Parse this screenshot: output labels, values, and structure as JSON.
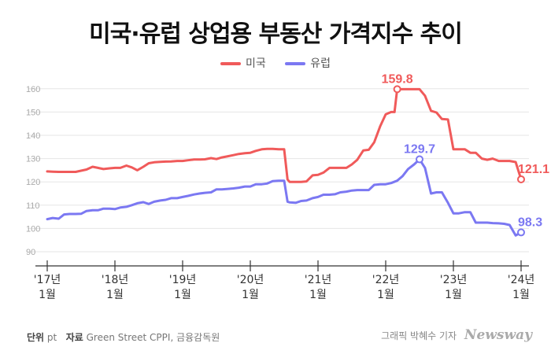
{
  "title": "미국·유럽 상업용 부동산 가격지수 추이",
  "legend": [
    {
      "name": "미국",
      "color": "#f05a5a"
    },
    {
      "name": "유럽",
      "color": "#7b78f2"
    }
  ],
  "footer": {
    "unit_label": "단위",
    "unit_value": "pt",
    "source_label": "자료",
    "source_value": "Green Street CPPI, 금융감독원",
    "credit": "그래픽 박혜수 기자",
    "brand": "Newsway"
  },
  "chart_data": {
    "type": "line",
    "ylim": [
      90,
      165
    ],
    "yticks": [
      90,
      100,
      110,
      120,
      130,
      140,
      150,
      160
    ],
    "xlim": [
      2017.0,
      2024.0
    ],
    "xticks": [
      {
        "x": 2017.0,
        "line1": "'17년",
        "line2": "1월"
      },
      {
        "x": 2018.0,
        "line1": "'18년",
        "line2": "1월"
      },
      {
        "x": 2019.0,
        "line1": "'19년",
        "line2": "1월"
      },
      {
        "x": 2020.0,
        "line1": "'20년",
        "line2": "1월"
      },
      {
        "x": 2021.0,
        "line1": "'21년",
        "line2": "1월"
      },
      {
        "x": 2022.0,
        "line1": "'22년",
        "line2": "1월"
      },
      {
        "x": 2023.0,
        "line1": "'23년",
        "line2": "1월"
      },
      {
        "x": 2024.0,
        "line1": "'24년",
        "line2": "1월"
      }
    ],
    "grid": true,
    "legend_position": "top-center",
    "series": [
      {
        "name": "미국",
        "color": "#f05a5a",
        "points": [
          [
            2017.0,
            124.5
          ],
          [
            2017.08,
            124.4
          ],
          [
            2017.17,
            124.3
          ],
          [
            2017.25,
            124.3
          ],
          [
            2017.33,
            124.3
          ],
          [
            2017.42,
            124.3
          ],
          [
            2017.5,
            124.8
          ],
          [
            2017.58,
            125.3
          ],
          [
            2017.67,
            126.5
          ],
          [
            2017.75,
            126.0
          ],
          [
            2017.83,
            125.5
          ],
          [
            2017.92,
            125.8
          ],
          [
            2018.0,
            126.0
          ],
          [
            2018.08,
            126.0
          ],
          [
            2018.17,
            127.0
          ],
          [
            2018.25,
            126.2
          ],
          [
            2018.33,
            125.0
          ],
          [
            2018.42,
            126.5
          ],
          [
            2018.5,
            128.0
          ],
          [
            2018.58,
            128.4
          ],
          [
            2018.67,
            128.6
          ],
          [
            2018.75,
            128.7
          ],
          [
            2018.83,
            128.8
          ],
          [
            2018.92,
            129.0
          ],
          [
            2019.0,
            129.0
          ],
          [
            2019.08,
            129.3
          ],
          [
            2019.17,
            129.6
          ],
          [
            2019.25,
            129.6
          ],
          [
            2019.33,
            129.7
          ],
          [
            2019.42,
            130.2
          ],
          [
            2019.5,
            129.8
          ],
          [
            2019.58,
            130.5
          ],
          [
            2019.67,
            131.0
          ],
          [
            2019.75,
            131.5
          ],
          [
            2019.83,
            132.0
          ],
          [
            2019.92,
            132.3
          ],
          [
            2020.0,
            132.5
          ],
          [
            2020.08,
            133.3
          ],
          [
            2020.17,
            134.0
          ],
          [
            2020.25,
            134.2
          ],
          [
            2020.33,
            134.2
          ],
          [
            2020.42,
            134.0
          ],
          [
            2020.5,
            134.0
          ],
          [
            2020.55,
            121.0
          ],
          [
            2020.58,
            120.0
          ],
          [
            2020.67,
            120.0
          ],
          [
            2020.75,
            120.0
          ],
          [
            2020.83,
            120.2
          ],
          [
            2020.92,
            122.8
          ],
          [
            2021.0,
            123.0
          ],
          [
            2021.08,
            124.0
          ],
          [
            2021.17,
            126.0
          ],
          [
            2021.25,
            126.0
          ],
          [
            2021.33,
            126.0
          ],
          [
            2021.42,
            126.0
          ],
          [
            2021.5,
            127.5
          ],
          [
            2021.58,
            129.5
          ],
          [
            2021.67,
            133.5
          ],
          [
            2021.75,
            133.8
          ],
          [
            2021.83,
            137.0
          ],
          [
            2021.92,
            144.0
          ],
          [
            2022.0,
            149.0
          ],
          [
            2022.08,
            150.0
          ],
          [
            2022.13,
            150.0
          ],
          [
            2022.17,
            159.8
          ],
          [
            2022.25,
            159.8
          ],
          [
            2022.33,
            159.8
          ],
          [
            2022.42,
            159.8
          ],
          [
            2022.5,
            159.8
          ],
          [
            2022.58,
            157.0
          ],
          [
            2022.67,
            150.5
          ],
          [
            2022.75,
            149.8
          ],
          [
            2022.83,
            147.0
          ],
          [
            2022.92,
            146.8
          ],
          [
            2023.0,
            134.0
          ],
          [
            2023.08,
            134.0
          ],
          [
            2023.17,
            134.0
          ],
          [
            2023.25,
            132.5
          ],
          [
            2023.33,
            132.5
          ],
          [
            2023.42,
            130.0
          ],
          [
            2023.5,
            129.5
          ],
          [
            2023.58,
            130.0
          ],
          [
            2023.67,
            129.0
          ],
          [
            2023.75,
            129.0
          ],
          [
            2023.83,
            129.0
          ],
          [
            2023.92,
            128.5
          ],
          [
            2024.0,
            121.1
          ]
        ],
        "last_label": "121.1",
        "peak": {
          "x": 2022.17,
          "y": 159.8,
          "label": "159.8"
        }
      },
      {
        "name": "유럽",
        "color": "#7b78f2",
        "points": [
          [
            2017.0,
            104.0
          ],
          [
            2017.08,
            104.5
          ],
          [
            2017.17,
            104.2
          ],
          [
            2017.25,
            106.0
          ],
          [
            2017.33,
            106.2
          ],
          [
            2017.42,
            106.2
          ],
          [
            2017.5,
            106.3
          ],
          [
            2017.58,
            107.5
          ],
          [
            2017.67,
            107.8
          ],
          [
            2017.75,
            107.8
          ],
          [
            2017.83,
            108.5
          ],
          [
            2017.92,
            108.5
          ],
          [
            2018.0,
            108.3
          ],
          [
            2018.08,
            109.0
          ],
          [
            2018.17,
            109.3
          ],
          [
            2018.25,
            110.0
          ],
          [
            2018.33,
            110.8
          ],
          [
            2018.42,
            111.3
          ],
          [
            2018.5,
            110.5
          ],
          [
            2018.58,
            111.5
          ],
          [
            2018.67,
            112.0
          ],
          [
            2018.75,
            112.3
          ],
          [
            2018.83,
            113.0
          ],
          [
            2018.92,
            113.0
          ],
          [
            2019.0,
            113.5
          ],
          [
            2019.08,
            114.0
          ],
          [
            2019.17,
            114.6
          ],
          [
            2019.25,
            115.0
          ],
          [
            2019.33,
            115.3
          ],
          [
            2019.42,
            115.5
          ],
          [
            2019.5,
            116.8
          ],
          [
            2019.58,
            116.8
          ],
          [
            2019.67,
            117.0
          ],
          [
            2019.75,
            117.2
          ],
          [
            2019.83,
            117.5
          ],
          [
            2019.92,
            118.0
          ],
          [
            2020.0,
            118.0
          ],
          [
            2020.08,
            119.0
          ],
          [
            2020.17,
            119.0
          ],
          [
            2020.25,
            119.3
          ],
          [
            2020.33,
            120.3
          ],
          [
            2020.42,
            120.5
          ],
          [
            2020.5,
            120.5
          ],
          [
            2020.55,
            111.5
          ],
          [
            2020.58,
            111.2
          ],
          [
            2020.67,
            111.0
          ],
          [
            2020.75,
            111.8
          ],
          [
            2020.83,
            112.0
          ],
          [
            2020.92,
            113.0
          ],
          [
            2021.0,
            113.5
          ],
          [
            2021.08,
            114.5
          ],
          [
            2021.17,
            114.5
          ],
          [
            2021.25,
            114.7
          ],
          [
            2021.33,
            115.5
          ],
          [
            2021.42,
            115.8
          ],
          [
            2021.5,
            116.3
          ],
          [
            2021.58,
            116.5
          ],
          [
            2021.67,
            116.5
          ],
          [
            2021.75,
            116.5
          ],
          [
            2021.83,
            118.7
          ],
          [
            2021.92,
            119.0
          ],
          [
            2022.0,
            119.0
          ],
          [
            2022.08,
            119.5
          ],
          [
            2022.17,
            120.5
          ],
          [
            2022.25,
            122.5
          ],
          [
            2022.33,
            125.5
          ],
          [
            2022.42,
            127.5
          ],
          [
            2022.5,
            129.7
          ],
          [
            2022.58,
            126.0
          ],
          [
            2022.67,
            115.0
          ],
          [
            2022.75,
            115.5
          ],
          [
            2022.83,
            115.5
          ],
          [
            2022.92,
            111.0
          ],
          [
            2023.0,
            106.5
          ],
          [
            2023.08,
            106.5
          ],
          [
            2023.17,
            107.0
          ],
          [
            2023.25,
            107.0
          ],
          [
            2023.33,
            102.5
          ],
          [
            2023.42,
            102.5
          ],
          [
            2023.5,
            102.5
          ],
          [
            2023.58,
            102.3
          ],
          [
            2023.67,
            102.2
          ],
          [
            2023.75,
            102.0
          ],
          [
            2023.83,
            101.5
          ],
          [
            2023.92,
            97.0
          ],
          [
            2024.0,
            98.3
          ]
        ],
        "last_label": "98.3",
        "peak": {
          "x": 2022.5,
          "y": 129.7,
          "label": "129.7"
        }
      }
    ]
  }
}
